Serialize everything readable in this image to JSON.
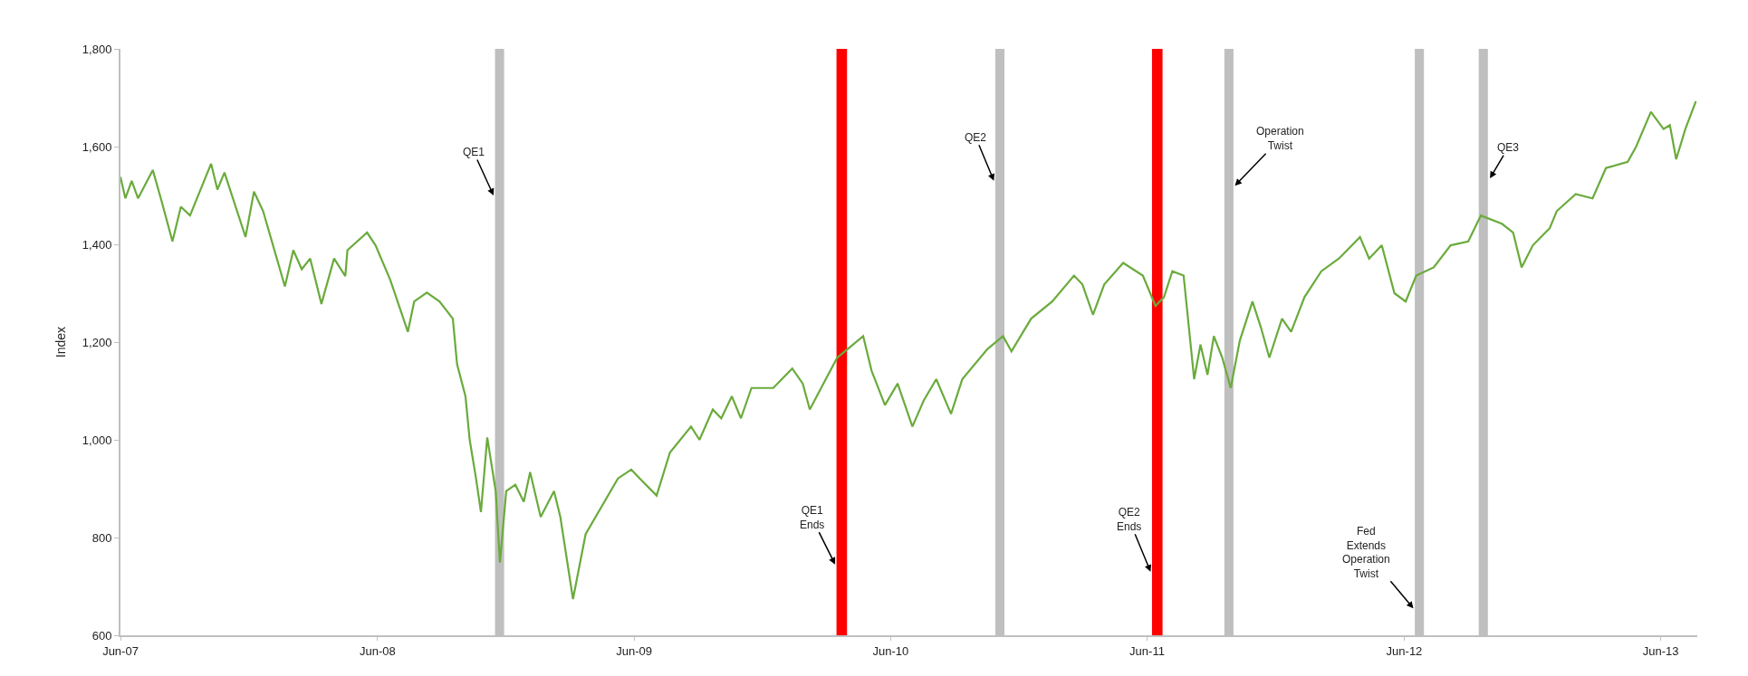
{
  "chart_data": {
    "type": "line",
    "ylabel": "Index",
    "x": [
      "2007-06-01",
      "2007-06-08",
      "2007-06-17",
      "2007-06-26",
      "2007-07-17",
      "2007-07-30",
      "2007-08-14",
      "2007-08-26",
      "2007-09-08",
      "2007-10-08",
      "2007-10-17",
      "2007-10-27",
      "2007-11-26",
      "2007-12-08",
      "2007-12-21",
      "2008-01-21",
      "2008-02-02",
      "2008-02-14",
      "2008-02-26",
      "2008-03-13",
      "2008-03-31",
      "2008-04-16",
      "2008-04-19",
      "2008-05-17",
      "2008-05-29",
      "2008-06-19",
      "2008-07-14",
      "2008-07-23",
      "2008-08-10",
      "2008-08-28",
      "2008-09-16",
      "2008-09-22",
      "2008-10-04",
      "2008-10-10",
      "2008-10-19",
      "2008-10-26",
      "2008-11-04",
      "2008-11-16",
      "2008-11-22",
      "2008-12-01",
      "2008-12-14",
      "2008-12-26",
      "2009-01-04",
      "2009-01-19",
      "2009-02-07",
      "2009-02-16",
      "2009-03-06",
      "2009-03-24",
      "2009-05-09",
      "2009-05-28",
      "2009-06-09",
      "2009-07-03",
      "2009-07-22",
      "2009-08-21",
      "2009-09-02",
      "2009-09-21",
      "2009-10-03",
      "2009-10-18",
      "2009-10-31",
      "2009-11-15",
      "2009-12-16",
      "2010-01-12",
      "2010-01-27",
      "2010-02-06",
      "2010-02-24",
      "2010-03-17",
      "2010-04-23",
      "2010-05-05",
      "2010-05-24",
      "2010-06-11",
      "2010-07-02",
      "2010-07-18",
      "2010-08-05",
      "2010-08-26",
      "2010-09-11",
      "2010-10-17",
      "2010-11-08",
      "2010-11-20",
      "2010-12-18",
      "2011-01-17",
      "2011-02-17",
      "2011-03-01",
      "2011-03-16",
      "2011-04-01",
      "2011-04-28",
      "2011-05-26",
      "2011-06-13",
      "2011-06-25",
      "2011-07-07",
      "2011-07-23",
      "2011-08-07",
      "2011-08-16",
      "2011-08-26",
      "2011-09-04",
      "2011-09-16",
      "2011-09-28",
      "2011-10-11",
      "2011-10-29",
      "2011-11-10",
      "2011-11-22",
      "2011-12-10",
      "2011-12-23",
      "2012-01-11",
      "2012-02-04",
      "2012-02-29",
      "2012-03-30",
      "2012-04-12",
      "2012-04-30",
      "2012-05-18",
      "2012-06-03",
      "2012-06-18",
      "2012-07-13",
      "2012-08-06",
      "2012-08-31",
      "2012-09-18",
      "2012-10-18",
      "2012-11-03",
      "2012-11-15",
      "2012-12-01",
      "2012-12-25",
      "2013-01-04",
      "2013-01-31",
      "2013-02-24",
      "2013-03-15",
      "2013-04-15",
      "2013-04-27",
      "2013-05-18",
      "2013-06-05",
      "2013-06-14",
      "2013-06-23",
      "2013-07-06",
      "2013-07-21"
    ],
    "series": [
      {
        "color": "#6aab3c",
        "values": [
          1538,
          1494,
          1530,
          1494,
          1552,
          1486,
          1406,
          1477,
          1459,
          1565,
          1512,
          1547,
          1415,
          1508,
          1468,
          1314,
          1388,
          1349,
          1371,
          1278,
          1371,
          1335,
          1388,
          1424,
          1398,
          1327,
          1221,
          1283,
          1301,
          1283,
          1248,
          1155,
          1089,
          1000,
          921,
          852,
          1005,
          895,
          749,
          895,
          908,
          873,
          934,
          842,
          895,
          842,
          674,
          807,
          921,
          939,
          921,
          886,
          974,
          1027,
          1000,
          1062,
          1044,
          1089,
          1044,
          1106,
          1106,
          1146,
          1115,
          1062,
          1111,
          1168,
          1212,
          1141,
          1071,
          1115,
          1027,
          1080,
          1124,
          1053,
          1124,
          1186,
          1212,
          1181,
          1248,
          1283,
          1336,
          1318,
          1256,
          1318,
          1362,
          1336,
          1274,
          1292,
          1345,
          1336,
          1124,
          1195,
          1133,
          1212,
          1168,
          1106,
          1203,
          1283,
          1230,
          1168,
          1248,
          1221,
          1292,
          1345,
          1371,
          1415,
          1371,
          1398,
          1300,
          1283,
          1336,
          1353,
          1398,
          1406,
          1459,
          1442,
          1424,
          1353,
          1398,
          1433,
          1468,
          1503,
          1494,
          1556,
          1569,
          1600,
          1671,
          1636,
          1644,
          1574,
          1636,
          1693
        ]
      }
    ],
    "xlim": [
      "2007-06-01",
      "2013-07-23"
    ],
    "xticks": [
      {
        "value": "2007-06-01",
        "label": "Jun-07"
      },
      {
        "value": "2008-06-01",
        "label": "Jun-08"
      },
      {
        "value": "2009-06-01",
        "label": "Jun-09"
      },
      {
        "value": "2010-06-01",
        "label": "Jun-10"
      },
      {
        "value": "2011-06-01",
        "label": "Jun-11"
      },
      {
        "value": "2012-06-01",
        "label": "Jun-12"
      },
      {
        "value": "2013-06-01",
        "label": "Jun-13"
      }
    ],
    "ylim": [
      600,
      1800
    ],
    "yticks": [
      {
        "value": 600,
        "label": "600"
      },
      {
        "value": 800,
        "label": "800"
      },
      {
        "value": 1000,
        "label": "1,000"
      },
      {
        "value": 1200,
        "label": "1,200"
      },
      {
        "value": 1400,
        "label": "1,400"
      },
      {
        "value": 1600,
        "label": "1,600"
      },
      {
        "value": 1800,
        "label": "1,800"
      }
    ],
    "bands": [
      {
        "axis": "x",
        "from": "2008-11-15",
        "to": "2008-11-28",
        "color": "#bfbfbf"
      },
      {
        "axis": "x",
        "from": "2010-03-16",
        "to": "2010-03-31",
        "color": "#ff0000"
      },
      {
        "axis": "x",
        "from": "2010-10-28",
        "to": "2010-11-10",
        "color": "#bfbfbf"
      },
      {
        "axis": "x",
        "from": "2011-06-08",
        "to": "2011-06-23",
        "color": "#ff0000"
      },
      {
        "axis": "x",
        "from": "2011-09-19",
        "to": "2011-10-02",
        "color": "#bfbfbf"
      },
      {
        "axis": "x",
        "from": "2012-06-16",
        "to": "2012-06-29",
        "color": "#bfbfbf"
      },
      {
        "axis": "x",
        "from": "2012-09-15",
        "to": "2012-09-28",
        "color": "#bfbfbf"
      }
    ],
    "annotations": [
      {
        "text": "QE1",
        "x": "2008-11-13",
        "y": 1500
      },
      {
        "text": "QE2",
        "x": "2010-10-26",
        "y": 1530
      },
      {
        "text": "Operation\nTwist",
        "x": "2011-10-04",
        "y": 1520
      },
      {
        "text": "QE3",
        "x": "2012-10-01",
        "y": 1535
      },
      {
        "text": "QE1\nEnds",
        "x": "2010-03-14",
        "y": 745
      },
      {
        "text": "QE2\nEnds",
        "x": "2011-06-06",
        "y": 730
      },
      {
        "text": "Fed\nExtends\nOperation\nTwist",
        "x": "2012-06-14",
        "y": 655
      }
    ],
    "grid": false,
    "marker": "none",
    "line_style": "solid"
  }
}
